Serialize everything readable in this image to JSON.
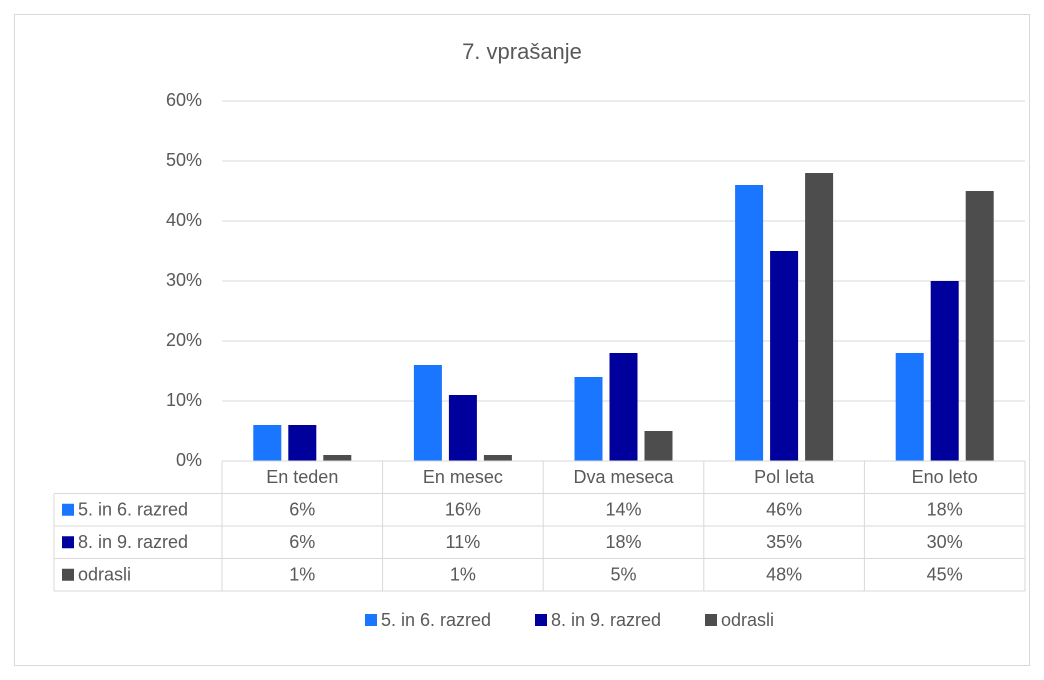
{
  "chart_data": {
    "type": "bar",
    "title": "7. vprašanje",
    "categories": [
      "En teden",
      "En mesec",
      "Dva meseca",
      "Pol leta",
      "Eno leto"
    ],
    "series": [
      {
        "name": "5. in 6. razred",
        "color": "#1a75ff",
        "values": [
          6,
          16,
          14,
          46,
          18
        ],
        "value_labels": [
          "6%",
          "16%",
          "14%",
          "46%",
          "18%"
        ]
      },
      {
        "name": "8. in 9. razred",
        "color": "#00009c",
        "values": [
          6,
          11,
          18,
          35,
          30
        ],
        "value_labels": [
          "6%",
          "11%",
          "18%",
          "35%",
          "30%"
        ]
      },
      {
        "name": "odrasli",
        "color": "#4d4d4d",
        "values": [
          1,
          1,
          5,
          48,
          45
        ],
        "value_labels": [
          "1%",
          "1%",
          "5%",
          "48%",
          "45%"
        ]
      }
    ],
    "ylim": [
      0,
      60
    ],
    "yticks": [
      {
        "value": 0,
        "label": "0%"
      },
      {
        "value": 10,
        "label": "10%"
      },
      {
        "value": 20,
        "label": "20%"
      },
      {
        "value": 30,
        "label": "30%"
      },
      {
        "value": 40,
        "label": "40%"
      },
      {
        "value": 50,
        "label": "50%"
      },
      {
        "value": 60,
        "label": "60%"
      }
    ],
    "grid": true,
    "legend": "bottom"
  }
}
